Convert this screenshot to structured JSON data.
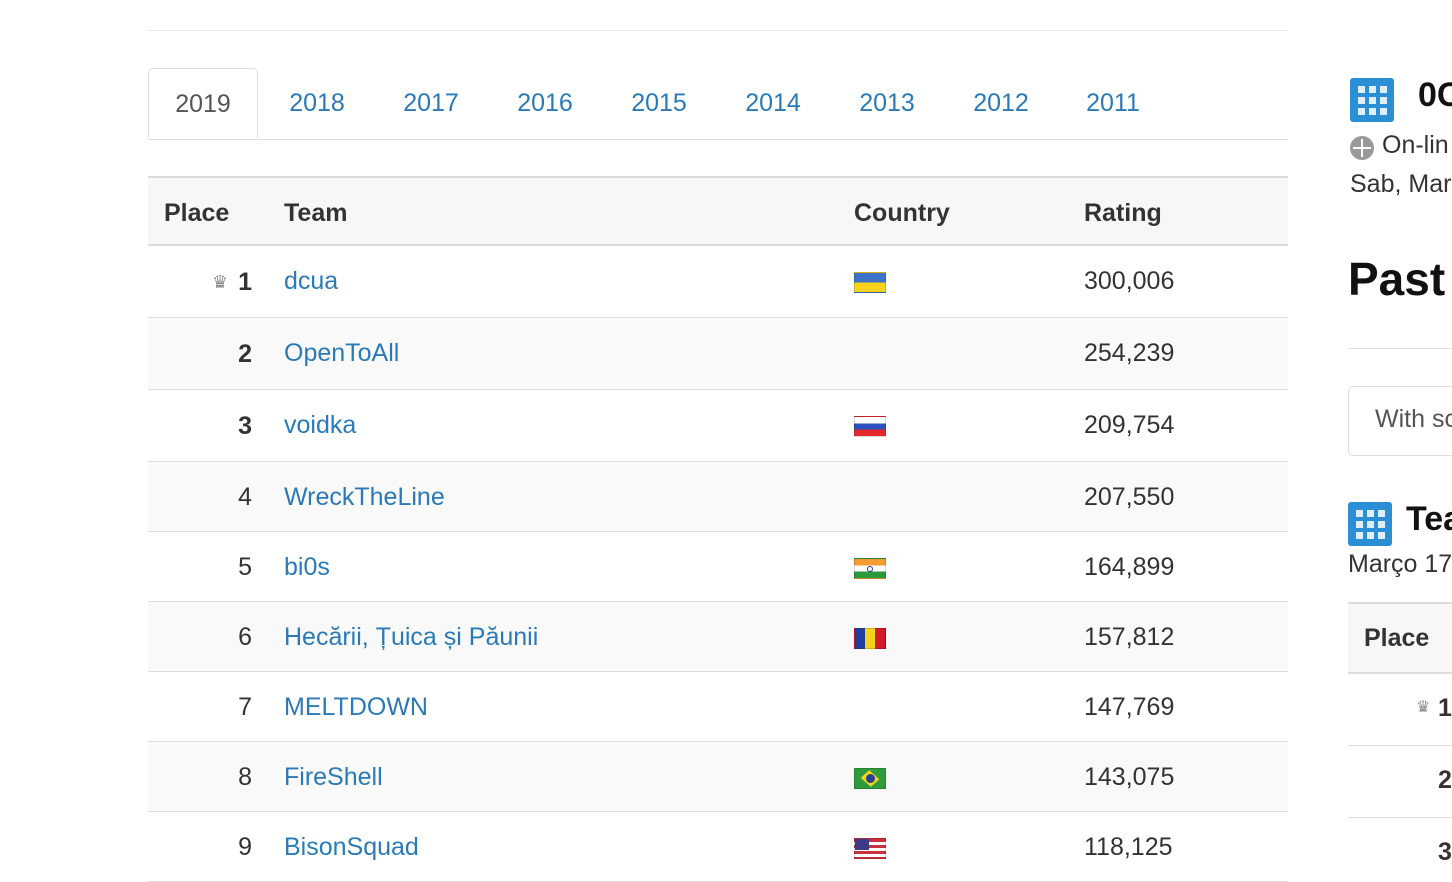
{
  "tabs": [
    "2019",
    "2018",
    "2017",
    "2016",
    "2015",
    "2014",
    "2013",
    "2012",
    "2011"
  ],
  "active_tab": "2019",
  "table": {
    "headers": {
      "place": "Place",
      "team": "Team",
      "country": "Country",
      "rating": "Rating"
    },
    "rows": [
      {
        "place": "1",
        "team": "dcua",
        "flag": "ua",
        "rating": "300,006"
      },
      {
        "place": "2",
        "team": "OpenToAll",
        "flag": "",
        "rating": "254,239"
      },
      {
        "place": "3",
        "team": "voidka",
        "flag": "ru",
        "rating": "209,754"
      },
      {
        "place": "4",
        "team": "WreckTheLine",
        "flag": "",
        "rating": "207,550"
      },
      {
        "place": "5",
        "team": "bi0s",
        "flag": "in",
        "rating": "164,899"
      },
      {
        "place": "6",
        "team": "Hecării, Țuica și Păunii",
        "flag": "ro",
        "rating": "157,812"
      },
      {
        "place": "7",
        "team": "MELTDOWN",
        "flag": "",
        "rating": "147,769"
      },
      {
        "place": "8",
        "team": "FireShell",
        "flag": "br",
        "rating": "143,075"
      },
      {
        "place": "9",
        "team": "BisonSquad",
        "flag": "us",
        "rating": "118,125"
      }
    ]
  },
  "right": {
    "event_title": "0C",
    "online": "On-lin",
    "date": "Sab, Mar",
    "past_heading": "Past",
    "with_scores": "With sc",
    "teams_heading": "Tea",
    "teams_date": "Março 17",
    "place_header": "Place",
    "place_1": "1",
    "place_2": "2",
    "place_3": "3"
  },
  "colors": {
    "link": "#2a7ab8",
    "icon": "#2a8fd4"
  }
}
